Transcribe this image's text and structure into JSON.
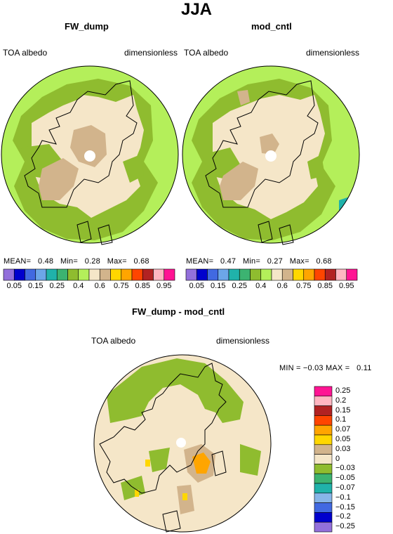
{
  "title": "JJA",
  "panels": [
    {
      "title": "FW_dump",
      "left_label": "TOA albedo",
      "right_label": "dimensionless",
      "stats": {
        "mean_label": "MEAN=",
        "mean": "0.48",
        "min_label": "Min=",
        "min": "0.28",
        "max_label": "Max=",
        "max": "0.68"
      }
    },
    {
      "title": "mod_cntl",
      "left_label": "TOA albedo",
      "right_label": "dimensionless",
      "stats": {
        "mean_label": "MEAN=",
        "mean": "0.47",
        "min_label": "Min=",
        "min": "0.27",
        "max_label": "Max=",
        "max": "0.68"
      }
    },
    {
      "title": "FW_dump - mod_cntl",
      "left_label": "TOA albedo",
      "right_label": "dimensionless",
      "stats": {
        "min_label": "MIN =",
        "min": "−0.03",
        "max_label": "MAX =",
        "max": "0.11"
      }
    }
  ],
  "colorbar_abs": {
    "colors": [
      "#9370db",
      "#0000cd",
      "#4169e1",
      "#6ca6e8",
      "#20b2aa",
      "#3cb371",
      "#8fbc2f",
      "#b4ef5a",
      "#f5e6c8",
      "#d2b48c",
      "#ffd700",
      "#ffa500",
      "#ff4500",
      "#b22222",
      "#ffb6c1",
      "#ff1493"
    ],
    "tick_labels": [
      "0.05",
      "0.15",
      "0.25",
      "0.4",
      "0.6",
      "0.75",
      "0.85",
      "0.95"
    ]
  },
  "colorbar_diff": {
    "colors_top_to_bottom": [
      "#ff1493",
      "#ffb6c1",
      "#b22222",
      "#ff4500",
      "#ffa500",
      "#ffd700",
      "#d2b48c",
      "#f5e6c8",
      "#8fbc2f",
      "#3cb371",
      "#20b2aa",
      "#87b5e8",
      "#4169e1",
      "#0000cd",
      "#9370db"
    ],
    "tick_labels": [
      "0.25",
      "0.2",
      "0.15",
      "0.1",
      "0.07",
      "0.05",
      "0.03",
      "0",
      "−0.03",
      "−0.05",
      "−0.07",
      "−0.1",
      "−0.15",
      "−0.2",
      "−0.25"
    ]
  },
  "map_colors": {
    "outer": "#b4ef5a",
    "mid": "#8fbc2f",
    "inner": "#f5e6c8",
    "tan": "#d2b48c",
    "teal": "#20b2aa",
    "yellow": "#ffd700",
    "orange": "#ffa500",
    "pole": "#ffffff"
  }
}
